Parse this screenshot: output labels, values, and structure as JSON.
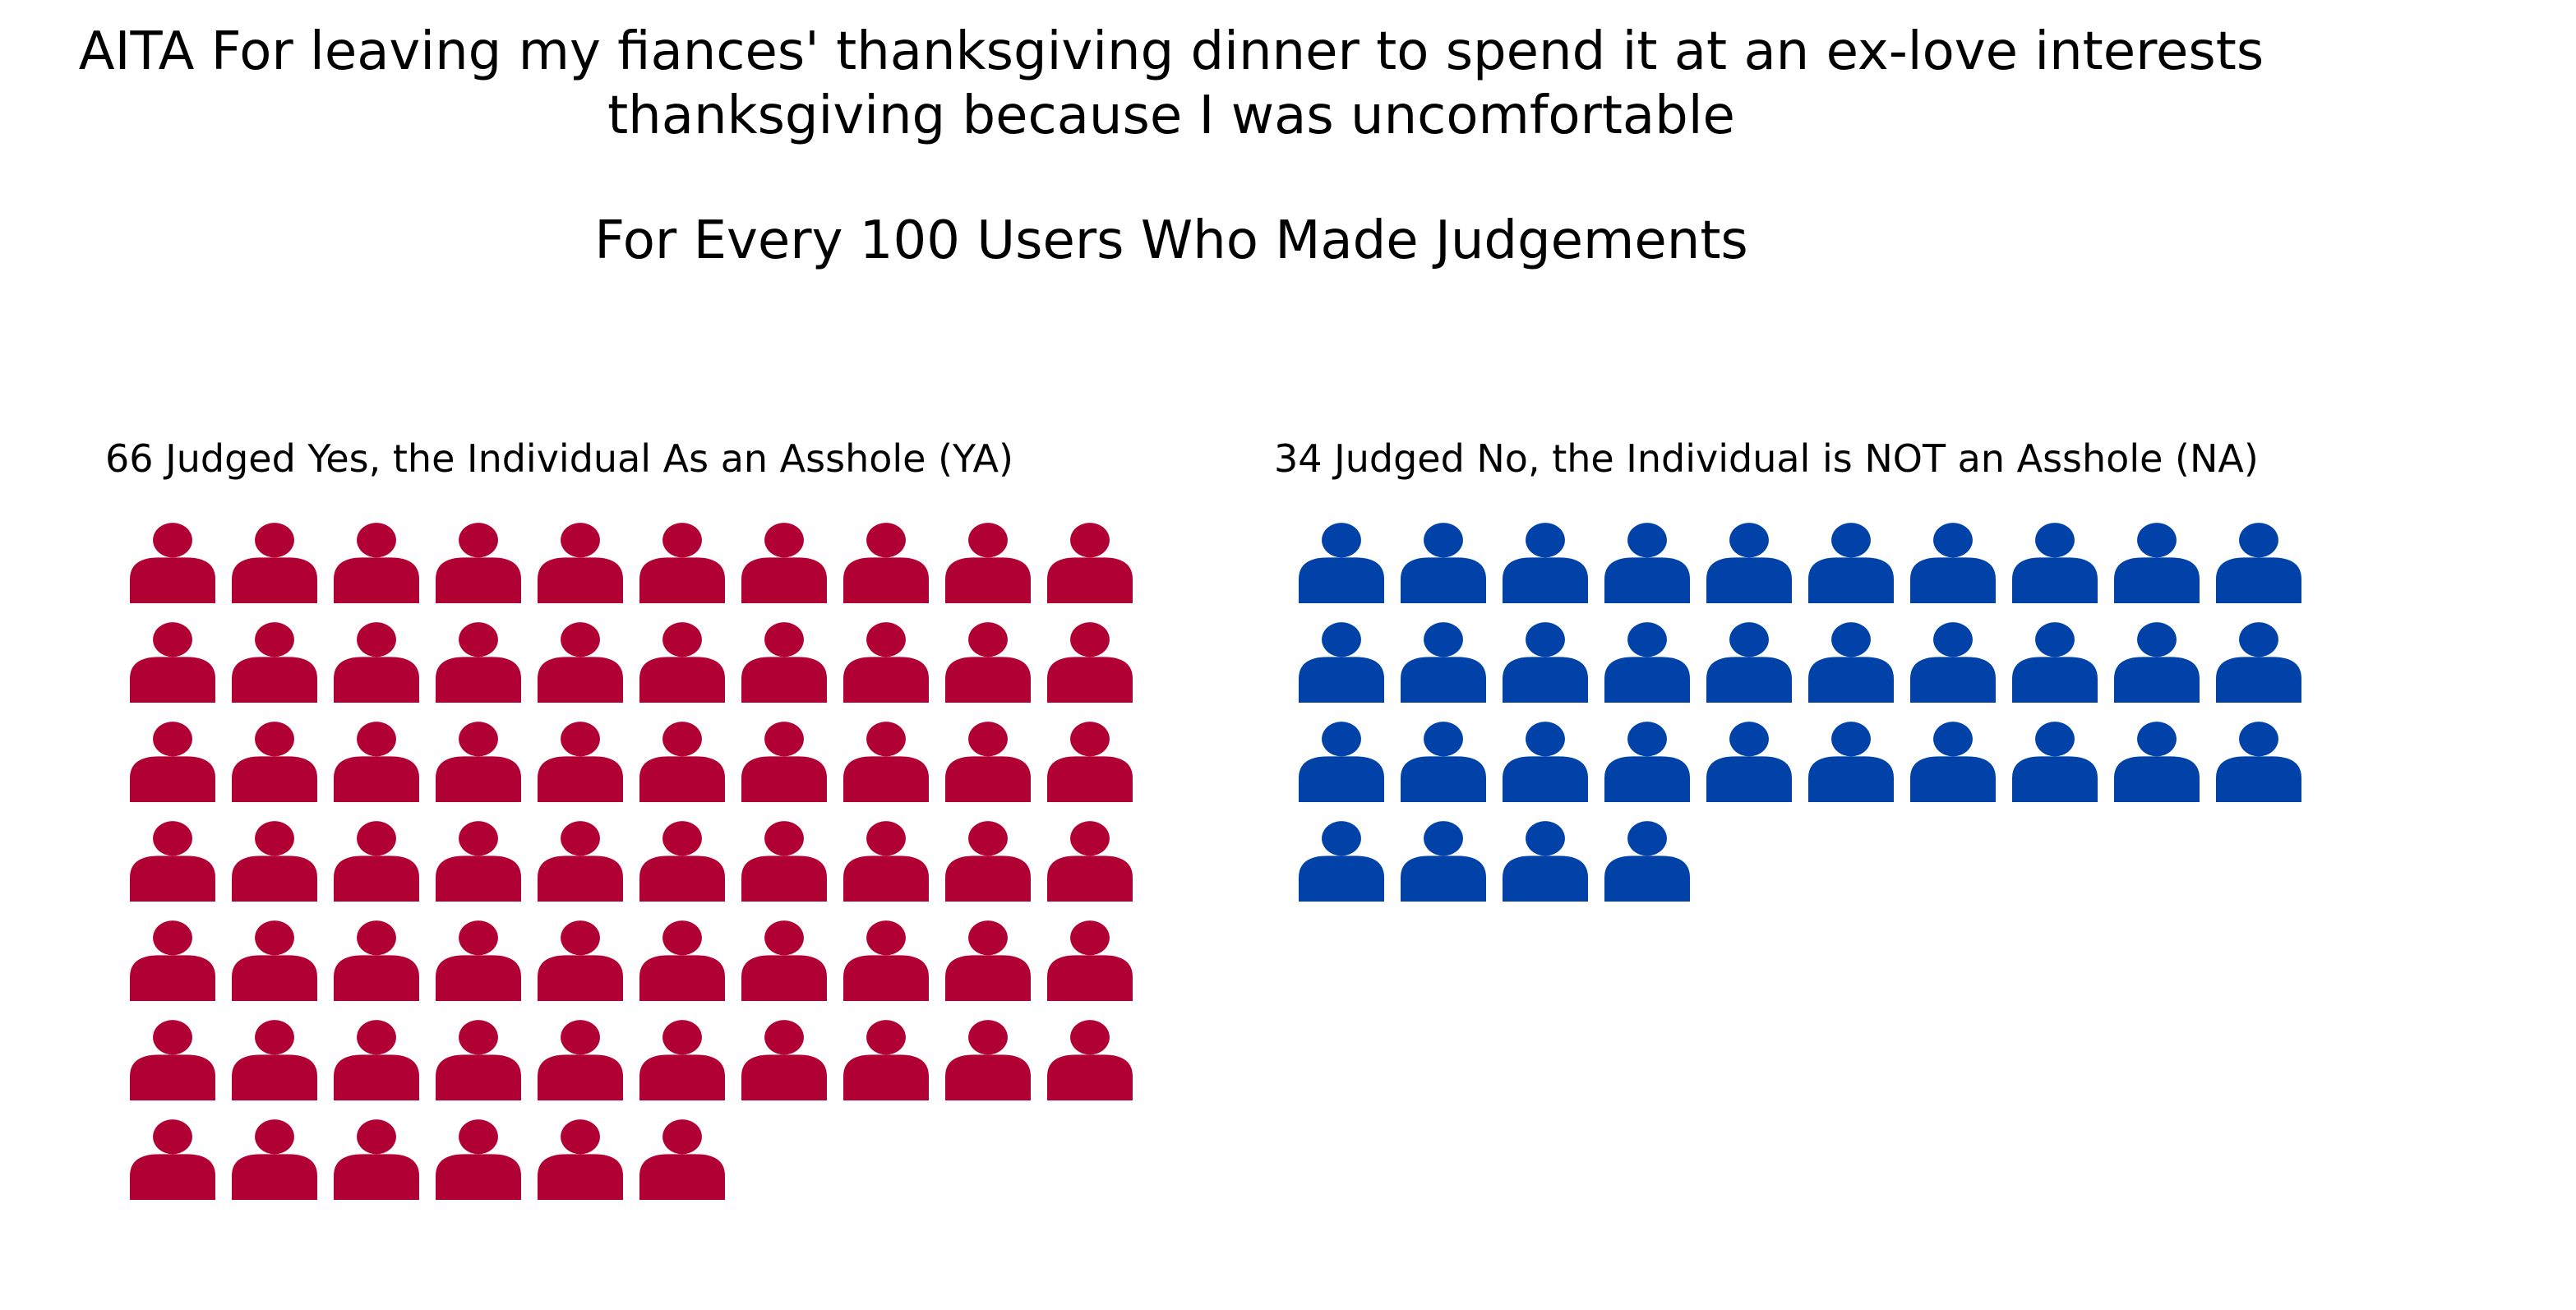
{
  "title": {
    "lines": [
      "AITA For leaving my fiances' thanksgiving dinner to spend it at an ex-love interests",
      "thanksgiving because I was uncomfortable"
    ],
    "subtitle": "For Every 100 Users Who Made Judgements"
  },
  "chart_data": {
    "type": "pictogram",
    "title": "AITA For leaving my fiances' thanksgiving dinner to spend it at an ex-love interests thanksgiving because I was uncomfortable",
    "subtitle": "For Every 100 Users Who Made Judgements",
    "icon": "person-icon",
    "icons_per_row": 10,
    "series": [
      {
        "key": "ya",
        "label": "66 Judged Yes, the Individual As an Asshole (YA)",
        "value": 66,
        "color": "#b10034"
      },
      {
        "key": "na",
        "label": "34 Judged No, the Individual is NOT an Asshole (NA)",
        "value": 34,
        "color": "#0042a8"
      }
    ]
  }
}
